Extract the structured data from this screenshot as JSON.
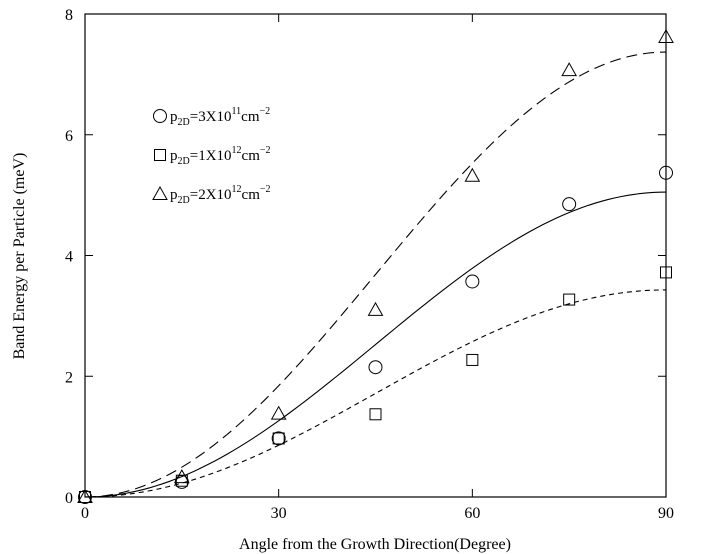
{
  "chart_data": {
    "type": "scatter",
    "xlabel": "Angle from the Growth Direction(Degree)",
    "ylabel": "Band  Energy per Particle (meV)",
    "xlim": [
      0,
      90
    ],
    "ylim": [
      0,
      8
    ],
    "xticks": [
      0,
      30,
      60,
      90
    ],
    "yticks": [
      0,
      2,
      4,
      6,
      8
    ],
    "grid": false,
    "legend_position": "upper-left",
    "series": [
      {
        "key": "circle",
        "marker": "circle",
        "legend": {
          "prefix": "p",
          "sub": "2D",
          "mid": "=3X10",
          "sup1": "11",
          "unit": "cm",
          "sup2": "−2"
        },
        "x": [
          0,
          15,
          30,
          45,
          60,
          75,
          90
        ],
        "y": [
          0.0,
          0.25,
          0.97,
          2.15,
          3.57,
          4.85,
          5.37
        ],
        "fit": {
          "style": "solid",
          "amplitude": 5.05
        }
      },
      {
        "key": "square",
        "marker": "square",
        "legend": {
          "prefix": "p",
          "sub": "2D",
          "mid": "=1X10",
          "sup1": "12",
          "unit": "cm",
          "sup2": "−2"
        },
        "x": [
          0,
          15,
          30,
          45,
          60,
          75,
          90
        ],
        "y": [
          0.0,
          0.27,
          0.97,
          1.37,
          2.27,
          3.27,
          3.72
        ],
        "fit": {
          "style": "short-dash",
          "amplitude": 3.43
        }
      },
      {
        "key": "triangle",
        "marker": "triangle",
        "legend": {
          "prefix": "p",
          "sub": "2D",
          "mid": "=2X10",
          "sup1": "12",
          "unit": "cm",
          "sup2": "−2"
        },
        "x": [
          0,
          15,
          30,
          45,
          60,
          75,
          90
        ],
        "y": [
          0.0,
          0.33,
          1.38,
          3.1,
          5.32,
          7.07,
          7.62
        ],
        "fit": {
          "style": "long-dash",
          "amplitude": 7.37
        }
      }
    ]
  }
}
